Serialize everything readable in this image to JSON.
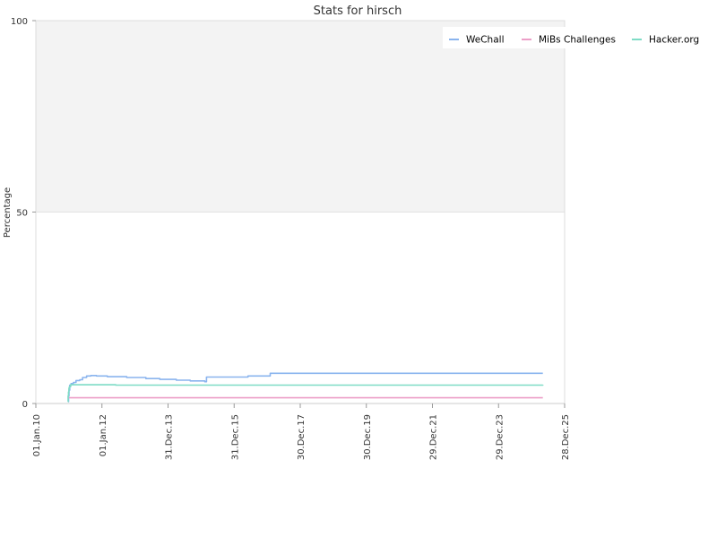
{
  "chart_data": {
    "type": "line",
    "title": "Stats for hirsch",
    "xlabel": "",
    "ylabel": "Percentage",
    "x_axis": "date",
    "xlim": [
      "2010-01-01",
      "2025-12-28"
    ],
    "xticks": [
      "01.Jan.10",
      "01.Jan.12",
      "31.Dec.13",
      "31.Dec.15",
      "30.Dec.17",
      "30.Dec.19",
      "29.Dec.21",
      "29.Dec.23",
      "28.Dec.25"
    ],
    "ylim": [
      0,
      100
    ],
    "yticks": [
      "0",
      "50",
      "100"
    ],
    "background_bands": [
      {
        "from": 50,
        "to": 100,
        "color": "#f3f3f3"
      },
      {
        "from": 0,
        "to": 50,
        "color": "#ffffff"
      }
    ],
    "grid": true,
    "legend_position": "top-right",
    "series": [
      {
        "name": "WeChall",
        "color": "#8ab4ee",
        "step": true,
        "points": [
          [
            "2010-12-25",
            0.5
          ],
          [
            "2010-12-28",
            2.0
          ],
          [
            "2011-01-02",
            3.5
          ],
          [
            "2011-01-10",
            4.8
          ],
          [
            "2011-01-25",
            5.2
          ],
          [
            "2011-02-20",
            5.5
          ],
          [
            "2011-03-20",
            6.0
          ],
          [
            "2011-05-01",
            6.2
          ],
          [
            "2011-06-01",
            6.8
          ],
          [
            "2011-07-15",
            7.2
          ],
          [
            "2011-09-01",
            7.3
          ],
          [
            "2011-11-01",
            7.2
          ],
          [
            "2012-03-01",
            7.0
          ],
          [
            "2012-10-01",
            6.8
          ],
          [
            "2013-05-01",
            6.5
          ],
          [
            "2013-10-01",
            6.3
          ],
          [
            "2014-04-01",
            6.1
          ],
          [
            "2014-09-01",
            5.9
          ],
          [
            "2015-02-10",
            5.7
          ],
          [
            "2015-03-01",
            6.9
          ],
          [
            "2016-06-01",
            7.2
          ],
          [
            "2017-02-01",
            7.9
          ],
          [
            "2025-05-01",
            7.9
          ]
        ]
      },
      {
        "name": "MiBs Challenges",
        "color": "#ec9fc8",
        "step": true,
        "points": [
          [
            "2010-12-25",
            1.5
          ],
          [
            "2025-05-01",
            1.5
          ]
        ]
      },
      {
        "name": "Hacker.org",
        "color": "#7fdcc6",
        "step": true,
        "points": [
          [
            "2010-12-20",
            0.5
          ],
          [
            "2010-12-23",
            2.0
          ],
          [
            "2010-12-27",
            3.0
          ],
          [
            "2011-01-01",
            4.0
          ],
          [
            "2011-01-06",
            4.4
          ],
          [
            "2011-01-20",
            4.9
          ],
          [
            "2012-06-01",
            4.8
          ],
          [
            "2025-05-01",
            4.9
          ]
        ]
      }
    ]
  }
}
